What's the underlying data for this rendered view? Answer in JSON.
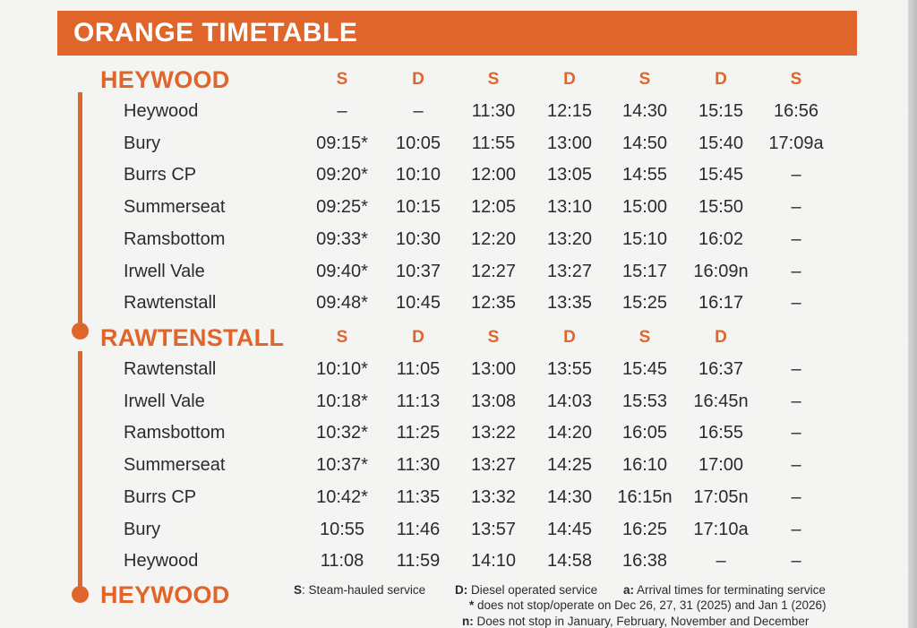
{
  "title": "ORANGE TIMETABLE",
  "colors": {
    "accent": "#e0652b",
    "text": "#2b2b2b",
    "paper": "#f4f4f3"
  },
  "sections": [
    {
      "name": "HEYWOOD",
      "service_types": [
        "S",
        "D",
        "S",
        "D",
        "S",
        "D",
        "S"
      ],
      "rows": [
        {
          "station": "Heywood",
          "times": [
            "–",
            "–",
            "11:30",
            "12:15",
            "14:30",
            "15:15",
            "16:56"
          ]
        },
        {
          "station": "Bury",
          "times": [
            "09:15*",
            "10:05",
            "11:55",
            "13:00",
            "14:50",
            "15:40",
            "17:09a"
          ]
        },
        {
          "station": "Burrs CP",
          "times": [
            "09:20*",
            "10:10",
            "12:00",
            "13:05",
            "14:55",
            "15:45",
            "–"
          ]
        },
        {
          "station": "Summerseat",
          "times": [
            "09:25*",
            "10:15",
            "12:05",
            "13:10",
            "15:00",
            "15:50",
            "–"
          ]
        },
        {
          "station": "Ramsbottom",
          "times": [
            "09:33*",
            "10:30",
            "12:20",
            "13:20",
            "15:10",
            "16:02",
            "–"
          ]
        },
        {
          "station": "Irwell Vale",
          "times": [
            "09:40*",
            "10:37",
            "12:27",
            "13:27",
            "15:17",
            "16:09n",
            "–"
          ]
        },
        {
          "station": "Rawtenstall",
          "times": [
            "09:48*",
            "10:45",
            "12:35",
            "13:35",
            "15:25",
            "16:17",
            "–"
          ]
        }
      ]
    },
    {
      "name": "RAWTENSTALL",
      "service_types": [
        "S",
        "D",
        "S",
        "D",
        "S",
        "D"
      ],
      "rows": [
        {
          "station": "Rawtenstall",
          "times": [
            "10:10*",
            "11:05",
            "13:00",
            "13:55",
            "15:45",
            "16:37",
            "–"
          ]
        },
        {
          "station": "Irwell Vale",
          "times": [
            "10:18*",
            "11:13",
            "13:08",
            "14:03",
            "15:53",
            "16:45n",
            "–"
          ]
        },
        {
          "station": "Ramsbottom",
          "times": [
            "10:32*",
            "11:25",
            "13:22",
            "14:20",
            "16:05",
            "16:55",
            "–"
          ]
        },
        {
          "station": "Summerseat",
          "times": [
            "10:37*",
            "11:30",
            "13:27",
            "14:25",
            "16:10",
            "17:00",
            "–"
          ]
        },
        {
          "station": "Burrs CP",
          "times": [
            "10:42*",
            "11:35",
            "13:32",
            "14:30",
            "16:15n",
            "17:05n",
            "–"
          ]
        },
        {
          "station": "Bury",
          "times": [
            "10:55",
            "11:46",
            "13:57",
            "14:45",
            "16:25",
            "17:10a",
            "–"
          ]
        },
        {
          "station": "Heywood",
          "times": [
            "11:08",
            "11:59",
            "14:10",
            "14:58",
            "16:38",
            "–",
            "–"
          ]
        }
      ]
    }
  ],
  "end_station": "HEYWOOD",
  "legend": {
    "s_key": "S",
    "s_text": ": Steam-hauled service",
    "d_key": "D:",
    "d_text": " Diesel operated service",
    "a_key": "a:",
    "a_text": " Arrival times for terminating service",
    "star_key": "*",
    "star_text": " does not stop/operate on Dec 26, 27, 31 (2025) and Jan 1 (2026)",
    "n_key": "n:",
    "n_text": " Does not stop in January, February, November and December"
  }
}
